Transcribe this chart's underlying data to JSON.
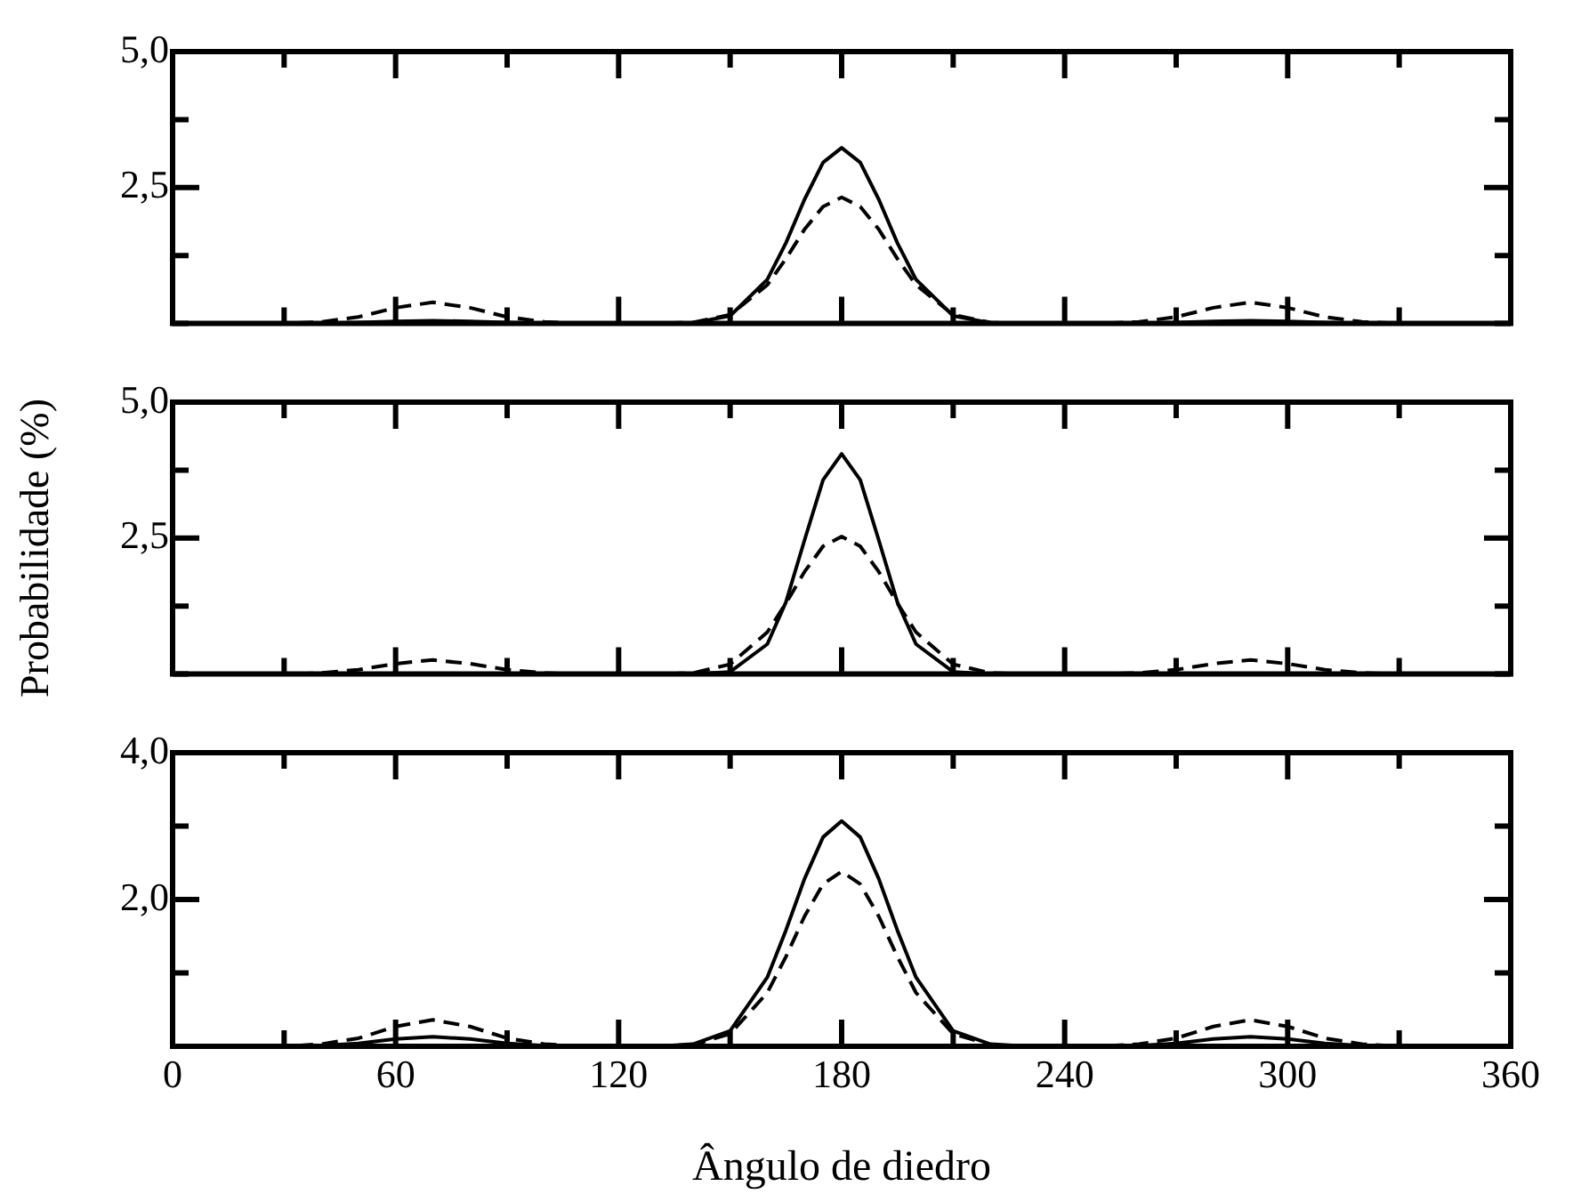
{
  "chart_data": [
    {
      "type": "line",
      "x": [
        0,
        30,
        40,
        50,
        60,
        70,
        80,
        90,
        100,
        110,
        130,
        140,
        150,
        160,
        165,
        170,
        175,
        180,
        185,
        190,
        195,
        200,
        210,
        220,
        230,
        250,
        260,
        270,
        280,
        290,
        300,
        310,
        320,
        330,
        360
      ],
      "xlim": [
        0,
        360
      ],
      "xticks": [
        0,
        {
          "value": 30,
          "label": null
        },
        60,
        {
          "value": 90,
          "label": null
        },
        120,
        {
          "value": 150,
          "label": null
        },
        180,
        {
          "value": 210,
          "label": null
        },
        240,
        {
          "value": 270,
          "label": null
        },
        300,
        {
          "value": 330,
          "label": null
        },
        360
      ],
      "ylim": [
        0,
        5
      ],
      "yticks": [
        {
          "value": 0,
          "label": null
        },
        {
          "value": 1.25,
          "label": null
        },
        {
          "value": 2.5,
          "label": "2,5"
        },
        {
          "value": 3.75,
          "label": null
        },
        {
          "value": 5,
          "label": "5,0"
        }
      ],
      "tick_labels": "y",
      "grid": false,
      "legend": false,
      "marker": "none",
      "series": [
        {
          "color": "#000000",
          "line_style": "solid",
          "values": [
            0,
            0,
            0,
            0.02,
            0.04,
            0.05,
            0.04,
            0.02,
            0,
            0,
            0,
            0.01,
            0.14,
            0.81,
            1.48,
            2.28,
            2.96,
            3.23,
            2.96,
            2.28,
            1.48,
            0.81,
            0.14,
            0.01,
            0,
            0,
            0,
            0.02,
            0.04,
            0.05,
            0.04,
            0.02,
            0,
            0,
            0
          ]
        },
        {
          "color": "#000000",
          "line_style": "dashed",
          "values": [
            0,
            0,
            0.03,
            0.12,
            0.29,
            0.39,
            0.29,
            0.12,
            0.03,
            0,
            0,
            0.02,
            0.16,
            0.71,
            1.19,
            1.73,
            2.15,
            2.32,
            2.15,
            1.73,
            1.19,
            0.71,
            0.16,
            0.02,
            0,
            0,
            0.03,
            0.12,
            0.29,
            0.39,
            0.29,
            0.12,
            0.03,
            0,
            0
          ]
        }
      ]
    },
    {
      "type": "line",
      "x": [
        0,
        30,
        40,
        50,
        60,
        70,
        80,
        90,
        100,
        110,
        130,
        140,
        150,
        160,
        165,
        170,
        175,
        180,
        185,
        190,
        195,
        200,
        210,
        220,
        230,
        250,
        260,
        270,
        280,
        290,
        300,
        310,
        320,
        330,
        360
      ],
      "xlim": [
        0,
        360
      ],
      "xticks": [
        0,
        {
          "value": 30,
          "label": null
        },
        60,
        {
          "value": 90,
          "label": null
        },
        120,
        {
          "value": 150,
          "label": null
        },
        180,
        {
          "value": 210,
          "label": null
        },
        240,
        {
          "value": 270,
          "label": null
        },
        300,
        {
          "value": 330,
          "label": null
        },
        360
      ],
      "ylim": [
        0,
        5
      ],
      "yticks": [
        {
          "value": 0,
          "label": null
        },
        {
          "value": 1.25,
          "label": null
        },
        {
          "value": 2.5,
          "label": "2,5"
        },
        {
          "value": 3.75,
          "label": null
        },
        {
          "value": 5,
          "label": "5,0"
        }
      ],
      "ylabel": "Probabilidade (%)",
      "tick_labels": "y",
      "grid": false,
      "legend": false,
      "marker": "none",
      "series": [
        {
          "color": "#000000",
          "line_style": "solid",
          "values": [
            0,
            0,
            0,
            0,
            0,
            0,
            0,
            0,
            0,
            0,
            0,
            0,
            0.04,
            0.55,
            1.32,
            2.46,
            3.57,
            4.05,
            3.57,
            2.46,
            1.32,
            0.55,
            0.04,
            0,
            0,
            0,
            0,
            0,
            0,
            0,
            0,
            0,
            0,
            0,
            0
          ]
        },
        {
          "color": "#000000",
          "line_style": "dashed",
          "values": [
            0,
            0,
            0.02,
            0.08,
            0.19,
            0.26,
            0.19,
            0.08,
            0.02,
            0,
            0,
            0.02,
            0.18,
            0.77,
            1.3,
            1.88,
            2.35,
            2.53,
            2.35,
            1.88,
            1.3,
            0.77,
            0.18,
            0.02,
            0,
            0,
            0.02,
            0.08,
            0.19,
            0.26,
            0.19,
            0.08,
            0.02,
            0,
            0
          ]
        }
      ]
    },
    {
      "type": "line",
      "x": [
        0,
        30,
        40,
        50,
        60,
        70,
        80,
        90,
        100,
        110,
        130,
        140,
        150,
        160,
        165,
        170,
        175,
        180,
        185,
        190,
        195,
        200,
        210,
        220,
        230,
        250,
        260,
        270,
        280,
        290,
        300,
        310,
        320,
        330,
        360
      ],
      "xlim": [
        0,
        360
      ],
      "xticks": [
        0,
        {
          "value": 30,
          "label": null
        },
        60,
        {
          "value": 90,
          "label": null
        },
        120,
        {
          "value": 150,
          "label": null
        },
        180,
        {
          "value": 210,
          "label": null
        },
        240,
        {
          "value": 270,
          "label": null
        },
        300,
        {
          "value": 330,
          "label": null
        },
        360
      ],
      "ylim": [
        0,
        4
      ],
      "yticks": [
        {
          "value": 0,
          "label": null
        },
        {
          "value": 1,
          "label": null
        },
        {
          "value": 2,
          "label": "2,0"
        },
        {
          "value": 3,
          "label": null
        },
        {
          "value": 4,
          "label": "4,0"
        }
      ],
      "xlabel": "Ângulo de diedro",
      "grid": false,
      "legend": false,
      "marker": "none",
      "series": [
        {
          "color": "#000000",
          "line_style": "solid",
          "values": [
            0,
            0,
            0.01,
            0.04,
            0.1,
            0.13,
            0.1,
            0.04,
            0.01,
            0,
            0,
            0.03,
            0.21,
            0.94,
            1.58,
            2.28,
            2.85,
            3.07,
            2.85,
            2.28,
            1.58,
            0.94,
            0.21,
            0.03,
            0,
            0,
            0.01,
            0.04,
            0.1,
            0.13,
            0.1,
            0.04,
            0.01,
            0,
            0
          ]
        },
        {
          "color": "#000000",
          "line_style": "dashed",
          "values": [
            0,
            0,
            0.03,
            0.11,
            0.27,
            0.36,
            0.27,
            0.11,
            0.03,
            0,
            0,
            0.02,
            0.17,
            0.73,
            1.22,
            1.77,
            2.21,
            2.38,
            2.21,
            1.77,
            1.22,
            0.73,
            0.17,
            0.02,
            0,
            0,
            0.03,
            0.11,
            0.27,
            0.36,
            0.27,
            0.11,
            0.03,
            0,
            0
          ]
        }
      ]
    }
  ]
}
